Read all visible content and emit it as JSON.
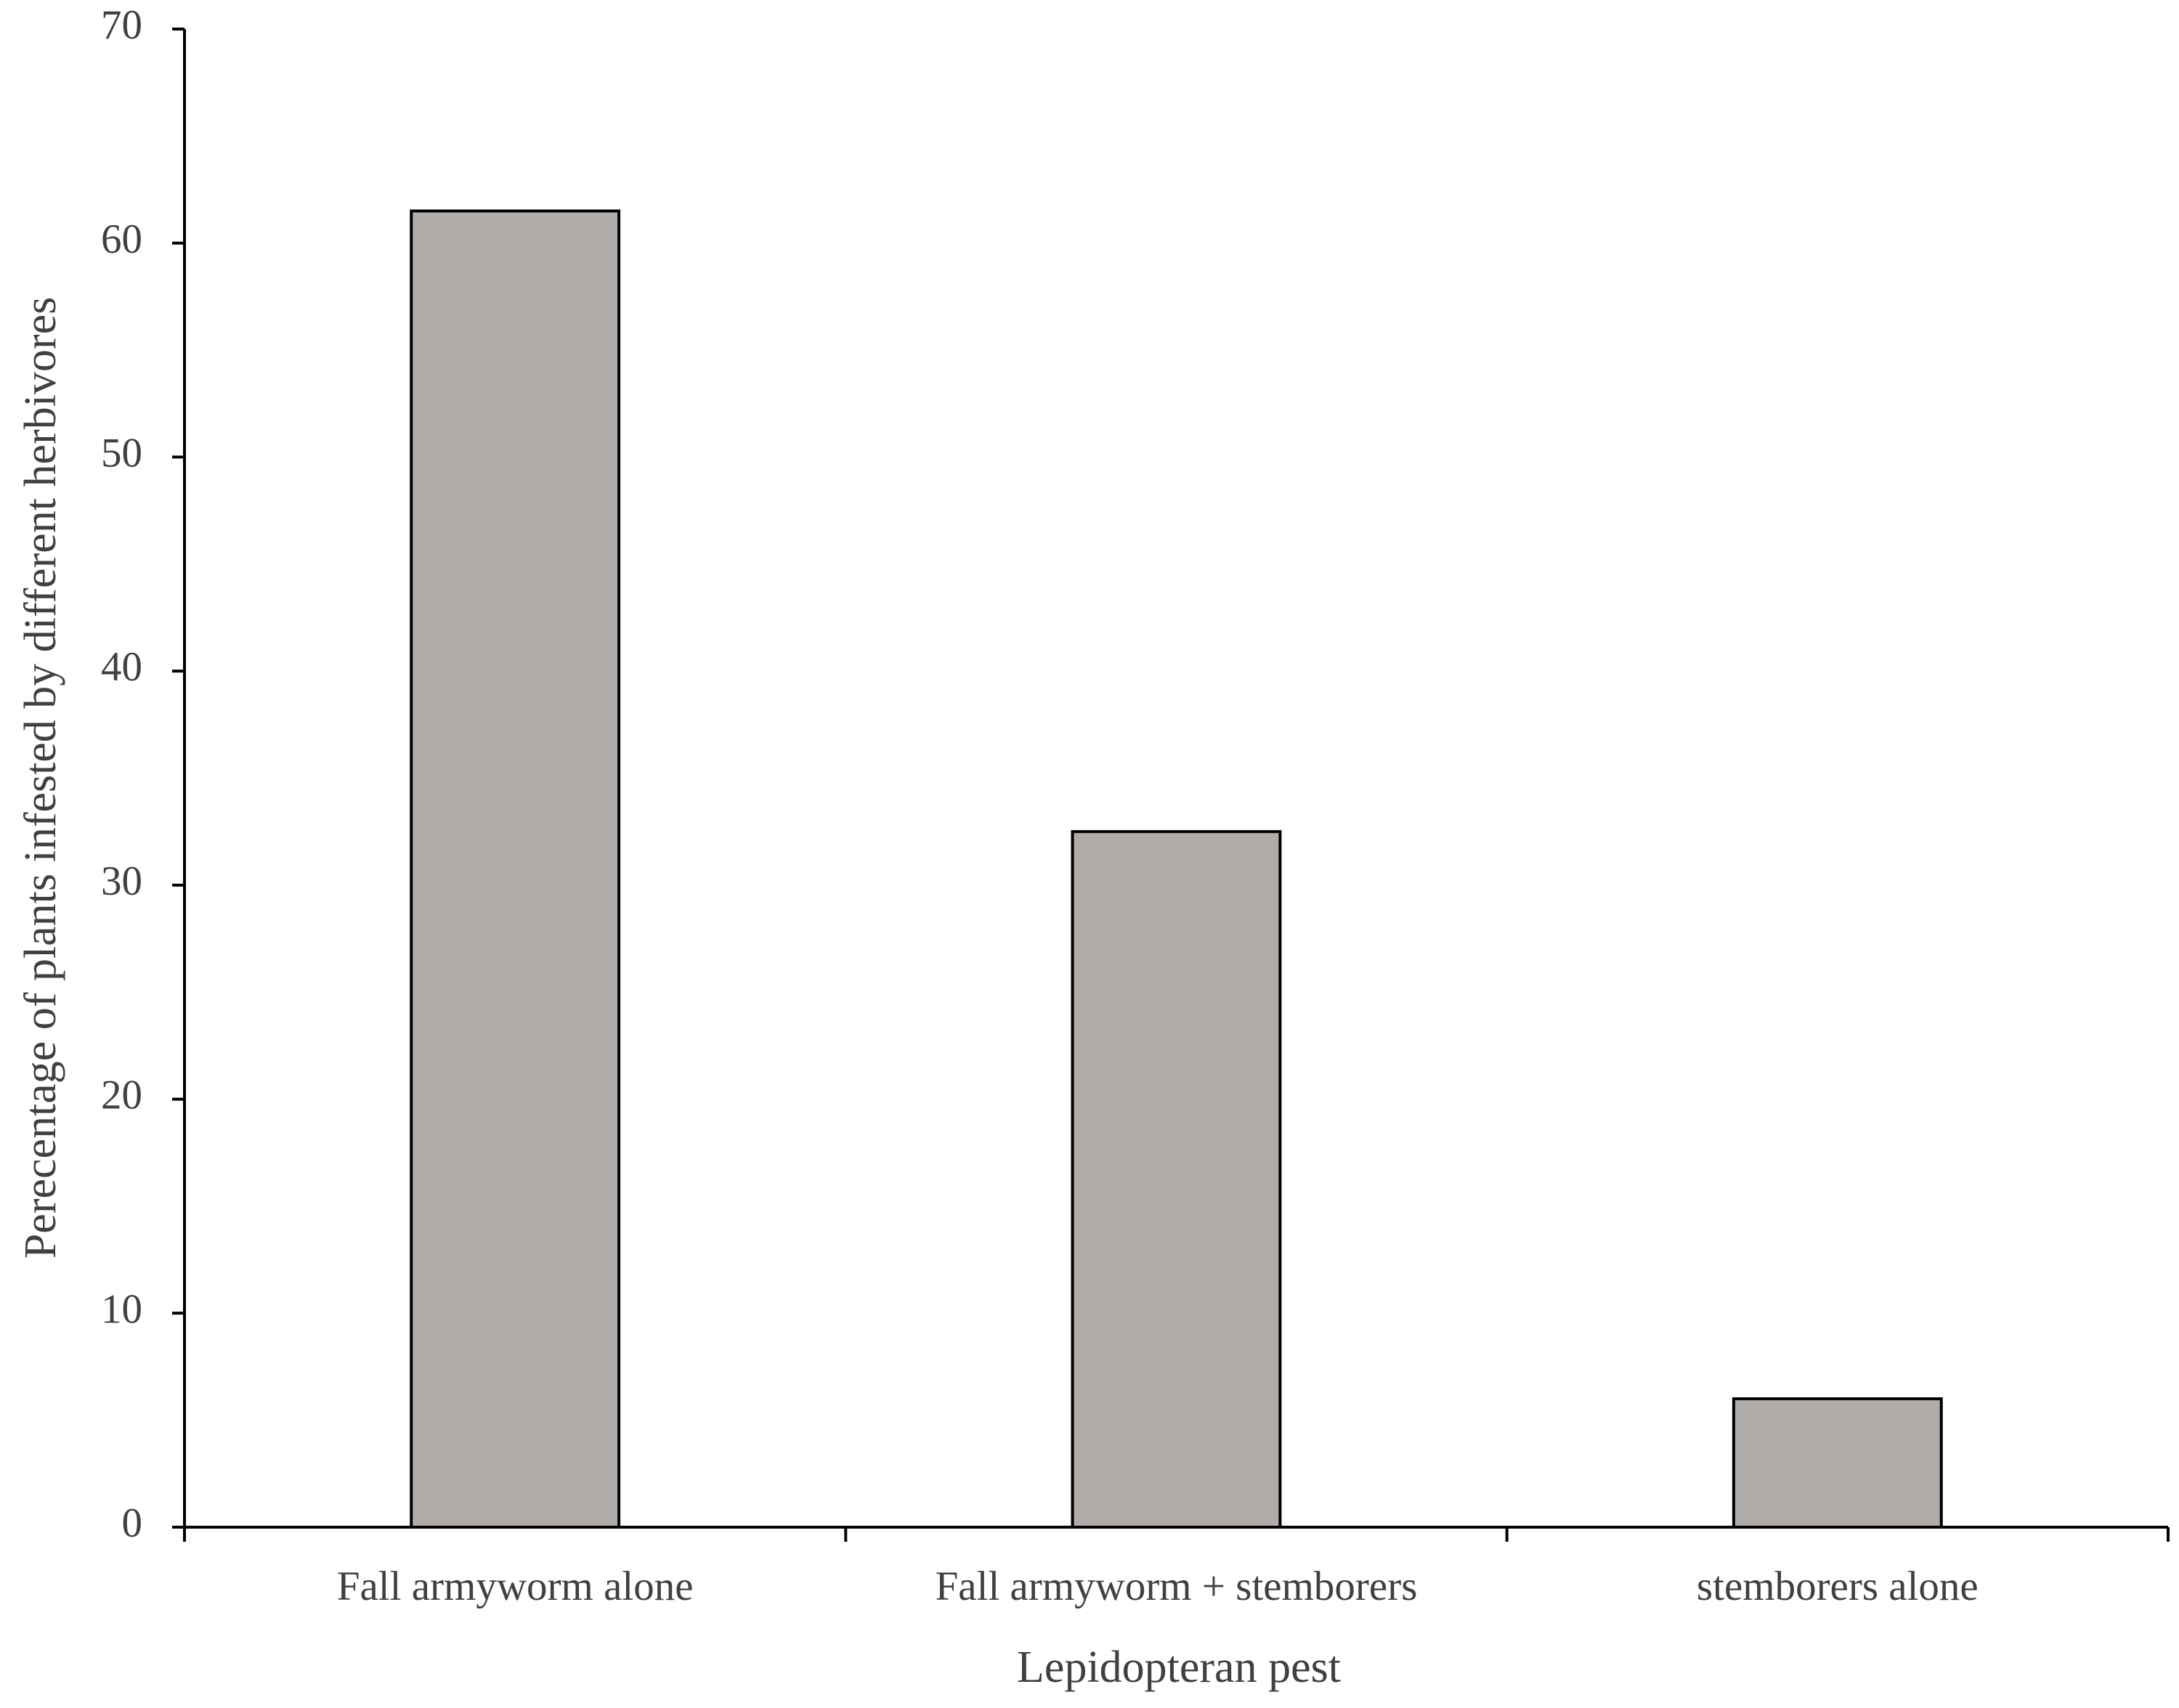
{
  "chart_data": {
    "type": "bar",
    "x_label": "Lepidopteran pest",
    "y_label": "Perecentage of plants infested by different herbivores",
    "categories": [
      "Fall armyworm alone",
      "Fall armyworm + stemborers",
      "stemborers alone"
    ],
    "values": [
      61.5,
      32.5,
      6
    ],
    "color": "#b0acaa",
    "ylim": [
      0,
      70
    ],
    "yticks": [
      0,
      10,
      20,
      30,
      40,
      50,
      60,
      70
    ],
    "grid": false
  }
}
